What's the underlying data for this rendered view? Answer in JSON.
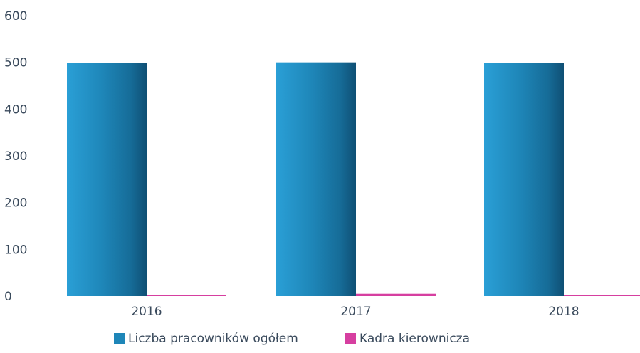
{
  "chart_data": {
    "type": "bar",
    "title": "",
    "xlabel": "",
    "ylabel": "",
    "categories": [
      "2016",
      "2017",
      "2018"
    ],
    "series": [
      {
        "name": "Liczba pracowników ogółem",
        "values": [
          498,
          500,
          498
        ],
        "color": "#1e86b8"
      },
      {
        "name": "Kadra kierownicza",
        "values": [
          3,
          5,
          3
        ],
        "color": "#d63fa0"
      }
    ],
    "ylim": [
      0,
      600
    ],
    "yticks": [
      0,
      100,
      200,
      300,
      400,
      500,
      600
    ],
    "grid": false,
    "legend_position": "bottom"
  },
  "colors": {
    "axis_text": "#3a4a5c"
  }
}
